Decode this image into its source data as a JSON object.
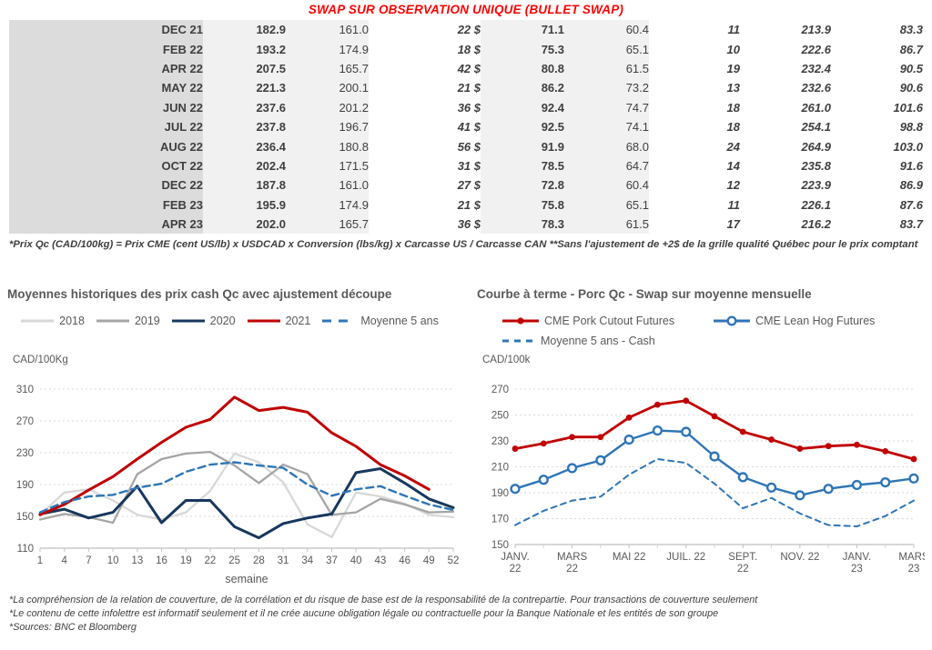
{
  "title": "SWAP SUR OBSERVATION UNIQUE (BULLET SWAP)",
  "colors": {
    "title_red": "#ff0000",
    "green": "#00a551",
    "blue": "#3a66c4",
    "dark_text": "#3f3f3f",
    "month_band": "#dcdcdc",
    "light_band": "#f1f1f1"
  },
  "table": {
    "rows": [
      [
        "DEC 21",
        "182.9",
        "161.0",
        "22 $",
        "71.1",
        "60.4",
        "11",
        "213.9",
        "83.3"
      ],
      [
        "FEB 22",
        "193.2",
        "174.9",
        "18 $",
        "75.3",
        "65.1",
        "10",
        "222.6",
        "86.7"
      ],
      [
        "APR 22",
        "207.5",
        "165.7",
        "42 $",
        "80.8",
        "61.5",
        "19",
        "232.4",
        "90.5"
      ],
      [
        "MAY 22",
        "221.3",
        "200.1",
        "21 $",
        "86.2",
        "73.2",
        "13",
        "232.6",
        "90.6"
      ],
      [
        "JUN 22",
        "237.6",
        "201.2",
        "36 $",
        "92.4",
        "74.7",
        "18",
        "261.0",
        "101.6"
      ],
      [
        "JUL 22",
        "237.8",
        "196.7",
        "41 $",
        "92.5",
        "74.1",
        "18",
        "254.1",
        "98.8"
      ],
      [
        "AUG 22",
        "236.4",
        "180.8",
        "56 $",
        "91.9",
        "68.0",
        "24",
        "264.9",
        "103.0"
      ],
      [
        "OCT 22",
        "202.4",
        "171.5",
        "31 $",
        "78.5",
        "64.7",
        "14",
        "235.8",
        "91.6"
      ],
      [
        "DEC 22",
        "187.8",
        "161.0",
        "27 $",
        "72.8",
        "60.4",
        "12",
        "223.9",
        "86.9"
      ],
      [
        "FEB 23",
        "195.9",
        "174.9",
        "21 $",
        "75.8",
        "65.1",
        "11",
        "226.1",
        "87.6"
      ],
      [
        "APR 23",
        "202.0",
        "165.7",
        "36 $",
        "78.3",
        "61.5",
        "17",
        "216.2",
        "83.7"
      ]
    ]
  },
  "footnote": "*Prix Qc (CAD/100kg) = Prix CME (cent US/lb) x USDCAD x Conversion (lbs/kg) x Carcasse US / Carcasse CAN **Sans l'ajustement de +2$ de la grille qualité Québec pour le prix comptant",
  "notes": [
    "*La compréhension de la relation de couverture, de la corrélation et du risque de base est de la responsabilité de la contrepartie. Pour transactions de couverture seulement",
    "*Le contenu de cette infolettre est informatif seulement et il ne crée aucune obligation légale ou contractuelle pour la Banque Nationale et les entités de son groupe",
    "*Sources: BNC et Bloomberg"
  ],
  "chart_data": [
    {
      "type": "line",
      "title": "Moyennes historiques des prix cash Qc avec ajustement découpe",
      "y_axis_label": "CAD/100Kg",
      "x_axis_label": "semaine",
      "ylim": [
        110,
        310
      ],
      "yticks": [
        310,
        270,
        230,
        190,
        150,
        110
      ],
      "xlim": [
        1,
        52
      ],
      "grid": "dashed-horizontal",
      "legend_position": "top",
      "legend_rows": [
        [
          0,
          1,
          2,
          3,
          4
        ]
      ],
      "xticks": [
        {
          "pos": 1,
          "lines": [
            "1"
          ]
        },
        {
          "pos": 4,
          "lines": [
            "4"
          ]
        },
        {
          "pos": 7,
          "lines": [
            "7"
          ]
        },
        {
          "pos": 10,
          "lines": [
            "10"
          ]
        },
        {
          "pos": 13,
          "lines": [
            "13"
          ]
        },
        {
          "pos": 16,
          "lines": [
            "16"
          ]
        },
        {
          "pos": 19,
          "lines": [
            "19"
          ]
        },
        {
          "pos": 22,
          "lines": [
            "22"
          ]
        },
        {
          "pos": 25,
          "lines": [
            "25"
          ]
        },
        {
          "pos": 28,
          "lines": [
            "28"
          ]
        },
        {
          "pos": 31,
          "lines": [
            "31"
          ]
        },
        {
          "pos": 34,
          "lines": [
            "34"
          ]
        },
        {
          "pos": 37,
          "lines": [
            "37"
          ]
        },
        {
          "pos": 40,
          "lines": [
            "40"
          ]
        },
        {
          "pos": 43,
          "lines": [
            "43"
          ]
        },
        {
          "pos": 46,
          "lines": [
            "46"
          ]
        },
        {
          "pos": 49,
          "lines": [
            "49"
          ]
        },
        {
          "pos": 52,
          "lines": [
            "52"
          ]
        }
      ],
      "x": [
        1,
        4,
        7,
        10,
        13,
        16,
        19,
        22,
        25,
        28,
        31,
        34,
        37,
        40,
        43,
        46,
        49,
        52
      ],
      "series": [
        {
          "name": "2018",
          "color": "#d8d8d8",
          "swatch": "line",
          "values": [
            152,
            180,
            184,
            170,
            152,
            146,
            155,
            182,
            229,
            218,
            193,
            140,
            124,
            180,
            175,
            166,
            152,
            149
          ]
        },
        {
          "name": "2019",
          "color": "#a5a5a5",
          "swatch": "line",
          "values": [
            146,
            153,
            149,
            142,
            203,
            222,
            229,
            231,
            214,
            192,
            215,
            203,
            152,
            155,
            172,
            165,
            155,
            156
          ]
        },
        {
          "name": "2020",
          "color": "#17375e",
          "swatch": "line-bold",
          "values": [
            153,
            159,
            148,
            155,
            188,
            142,
            170,
            170,
            137,
            123,
            141,
            148,
            153,
            205,
            210,
            192,
            172,
            161
          ]
        },
        {
          "name": "2021",
          "color": "#c00000",
          "swatch": "line-bold",
          "values": [
            152,
            165,
            183,
            200,
            222,
            243,
            262,
            272,
            300,
            283,
            287,
            281,
            255,
            238,
            215,
            201,
            184,
            null
          ]
        },
        {
          "name": "Moyenne 5 ans",
          "color": "#2e75b6",
          "swatch": "dashed",
          "values": [
            155,
            168,
            175,
            177,
            186,
            191,
            206,
            215,
            218,
            214,
            211,
            190,
            176,
            184,
            188,
            176,
            165,
            158
          ]
        }
      ]
    },
    {
      "type": "line",
      "title": "Courbe à terme - Porc Qc - Swap sur moyenne mensuelle",
      "y_axis_label": "CAD/100k",
      "x_axis_label": "",
      "ylim": [
        150,
        270
      ],
      "yticks": [
        270,
        250,
        230,
        210,
        190,
        170,
        150
      ],
      "xlim": [
        0,
        14
      ],
      "grid": "dashed-horizontal",
      "legend_position": "top",
      "legend_rows": [
        [
          0,
          1
        ],
        [
          2
        ]
      ],
      "minor_tick_every": 1,
      "xticks": [
        {
          "pos": 0,
          "lines": [
            "JANV.",
            "22"
          ]
        },
        {
          "pos": 2,
          "lines": [
            "MARS",
            "22"
          ]
        },
        {
          "pos": 4,
          "lines": [
            "MAI 22"
          ]
        },
        {
          "pos": 6,
          "lines": [
            "JUIL. 22"
          ]
        },
        {
          "pos": 8,
          "lines": [
            "SEPT.",
            "22"
          ]
        },
        {
          "pos": 10,
          "lines": [
            "NOV. 22"
          ]
        },
        {
          "pos": 12,
          "lines": [
            "JANV.",
            "23"
          ]
        },
        {
          "pos": 14,
          "lines": [
            "MARS",
            "23"
          ]
        }
      ],
      "x": [
        0,
        1,
        2,
        3,
        4,
        5,
        6,
        7,
        8,
        9,
        10,
        11,
        12,
        13,
        14
      ],
      "series": [
        {
          "name": "CME Pork Cutout Futures",
          "color": "#c00000",
          "swatch": "line-dot",
          "values": [
            224,
            228,
            233,
            233,
            248,
            258,
            261,
            249,
            237,
            231,
            224,
            226,
            227,
            222,
            216
          ]
        },
        {
          "name": "CME Lean Hog Futures",
          "color": "#2e75b6",
          "swatch": "line-open",
          "values": [
            193,
            200,
            209,
            215,
            231,
            238,
            237,
            218,
            202,
            194,
            188,
            193,
            196,
            198,
            201
          ]
        },
        {
          "name": "Moyenne 5 ans - Cash",
          "color": "#2e75b6",
          "swatch": "dashed-sm",
          "values": [
            165,
            176,
            184,
            187,
            204,
            216,
            213,
            197,
            178,
            186,
            174,
            165,
            164,
            172,
            184
          ]
        }
      ]
    }
  ]
}
